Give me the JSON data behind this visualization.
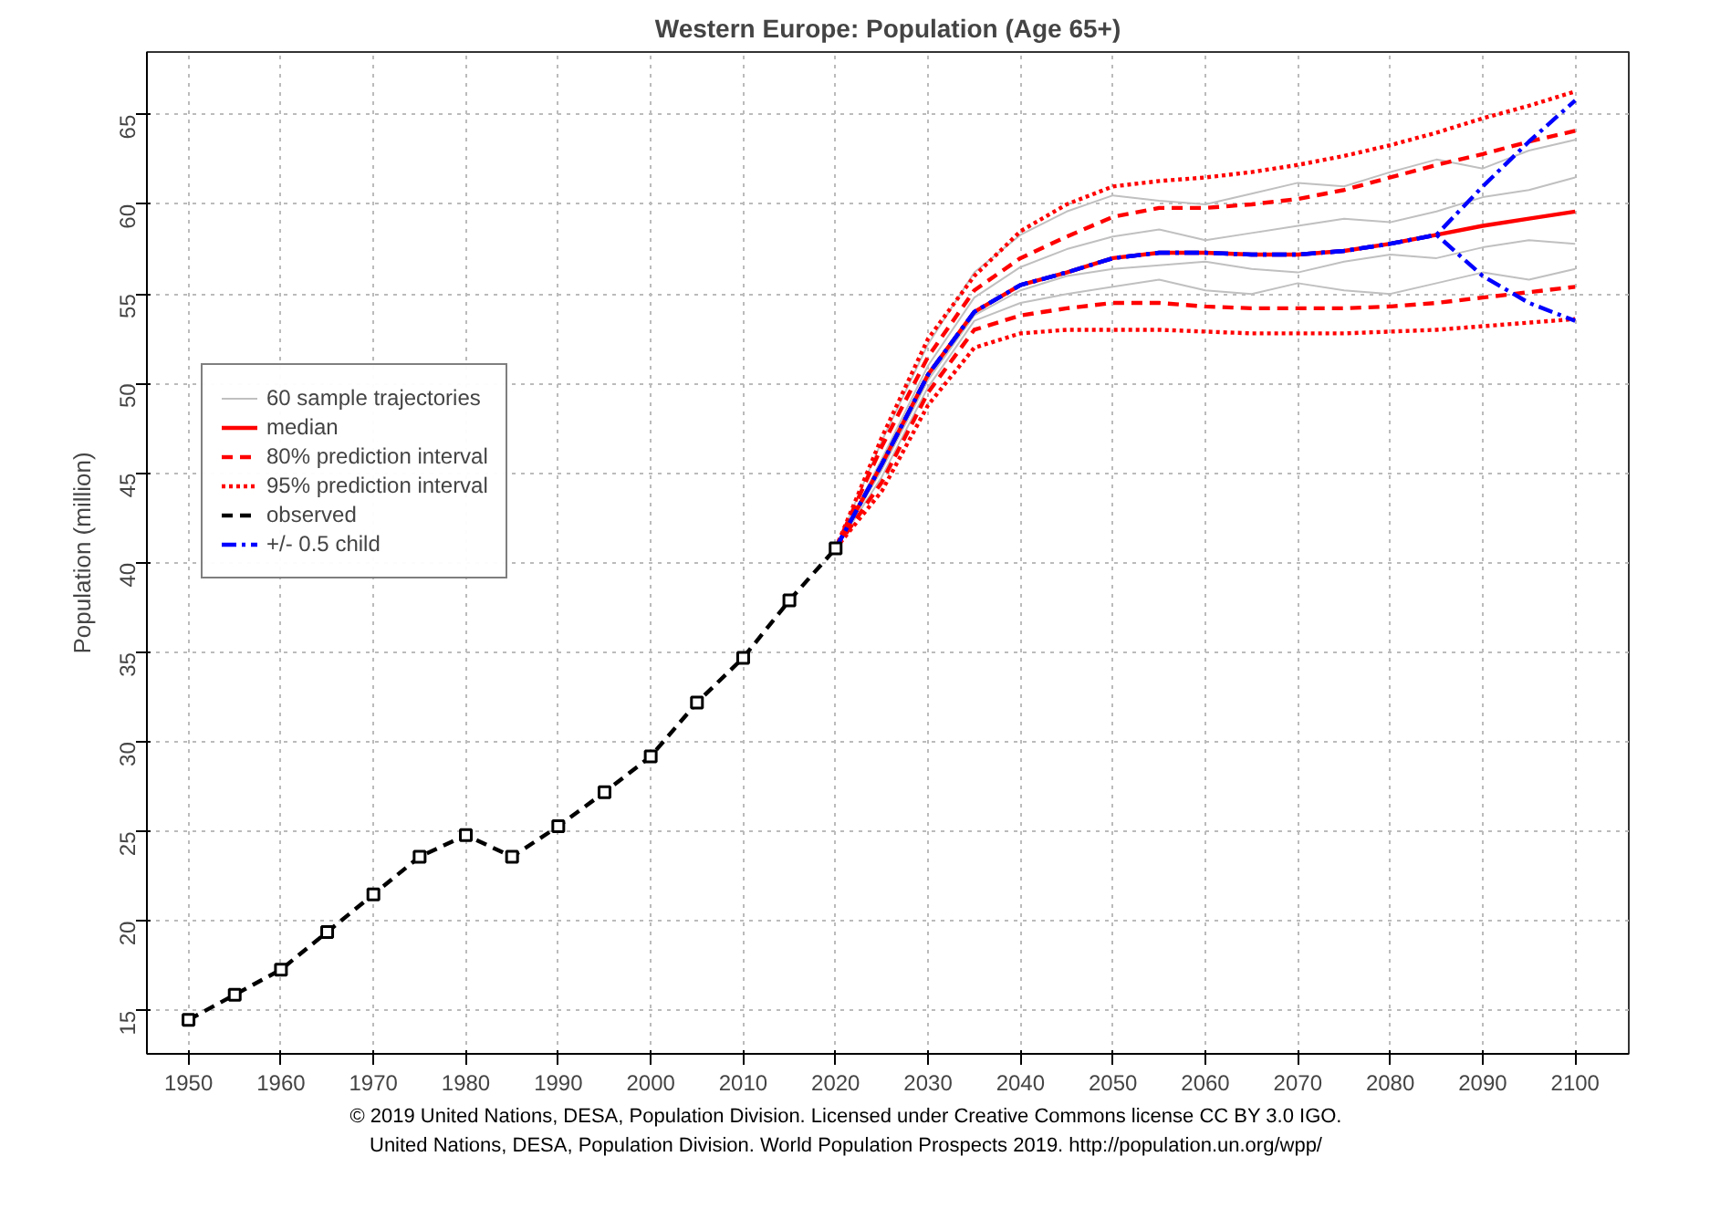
{
  "chart_data": {
    "type": "line",
    "title": "Western Europe: Population (Age 65+)",
    "ylabel": "Population (million)",
    "xlim": [
      1945.5,
      2105.8
    ],
    "ylim": [
      12.6,
      68.5
    ],
    "xticks": [
      1950,
      1960,
      1970,
      1980,
      1990,
      2000,
      2010,
      2020,
      2030,
      2040,
      2050,
      2060,
      2070,
      2080,
      2090,
      2100
    ],
    "yticks": [
      15,
      20,
      25,
      30,
      35,
      40,
      45,
      50,
      55,
      60,
      65
    ],
    "grid": true,
    "legend": "top left",
    "annotations": [
      "© 2019 United Nations, DESA, Population Division. Licensed under Creative Commons license CC BY 3.0 IGO.",
      "United Nations, DESA, Population Division. World Population Prospects 2019. http://population.un.org/wpp/"
    ],
    "series": [
      {
        "color": "#c0c0c0",
        "line_style": "solid",
        "marker": "none",
        "x": [
          2020,
          2025,
          2030,
          2035,
          2040,
          2045,
          2050,
          2055,
          2060,
          2065,
          2070,
          2075,
          2080,
          2085,
          2090,
          2095,
          2100
        ],
        "values": [
          40.8,
          46.8,
          52.2,
          56.2,
          58.3,
          59.6,
          60.5,
          60.2,
          60.0,
          60.6,
          61.2,
          61.0,
          61.8,
          62.5,
          62.0,
          63.0,
          63.6
        ]
      },
      {
        "color": "#c0c0c0",
        "line_style": "solid",
        "marker": "none",
        "x": [
          2020,
          2025,
          2030,
          2035,
          2040,
          2045,
          2050,
          2055,
          2060,
          2065,
          2070,
          2075,
          2080,
          2085,
          2090,
          2095,
          2100
        ],
        "values": [
          40.8,
          44.8,
          49.8,
          53.5,
          54.5,
          55.0,
          55.4,
          55.8,
          55.2,
          55.0,
          55.6,
          55.2,
          55.0,
          55.6,
          56.2,
          55.8,
          56.4
        ]
      },
      {
        "color": "#c0c0c0",
        "line_style": "solid",
        "marker": "none",
        "x": [
          2020,
          2025,
          2030,
          2035,
          2040,
          2045,
          2050,
          2055,
          2060,
          2065,
          2070,
          2075,
          2080,
          2085,
          2090,
          2095,
          2100
        ],
        "values": [
          40.8,
          45.8,
          51.0,
          54.8,
          56.5,
          57.5,
          58.2,
          58.6,
          58.0,
          58.4,
          58.8,
          59.2,
          59.0,
          59.6,
          60.4,
          60.8,
          61.5
        ]
      },
      {
        "name": "60 sample trajectories",
        "color": "#c0c0c0",
        "line_style": "solid",
        "marker": "none",
        "x": [
          2020,
          2025,
          2030,
          2035,
          2040,
          2045,
          2050,
          2055,
          2060,
          2065,
          2070,
          2075,
          2080,
          2085,
          2090,
          2095,
          2100
        ],
        "values": [
          40.8,
          45.2,
          50.2,
          53.8,
          55.2,
          56.0,
          56.4,
          56.6,
          56.8,
          56.4,
          56.2,
          56.8,
          57.2,
          57.0,
          57.6,
          58.0,
          57.8
        ]
      },
      {
        "name": "median",
        "color": "#ff0000",
        "line_style": "solid",
        "marker": "none",
        "x": [
          2020,
          2025,
          2030,
          2035,
          2040,
          2045,
          2050,
          2055,
          2060,
          2065,
          2070,
          2075,
          2080,
          2085,
          2090,
          2095,
          2100
        ],
        "values": [
          40.8,
          45.5,
          50.5,
          54.0,
          55.5,
          56.2,
          57.0,
          57.3,
          57.3,
          57.2,
          57.2,
          57.4,
          57.8,
          58.3,
          58.8,
          59.2,
          59.6
        ]
      },
      {
        "name": "80% prediction interval",
        "color": "#ff0000",
        "line_style": "dashed",
        "marker": "none",
        "x": [
          2020,
          2025,
          2030,
          2035,
          2040,
          2045,
          2050,
          2055,
          2060,
          2065,
          2070,
          2075,
          2080,
          2085,
          2090,
          2095,
          2100
        ],
        "values": [
          40.8,
          46.5,
          51.5,
          55.2,
          57.0,
          58.2,
          59.3,
          59.8,
          59.8,
          60.0,
          60.3,
          60.8,
          61.5,
          62.2,
          62.8,
          63.5,
          64.1
        ]
      },
      {
        "color": "#ff0000",
        "line_style": "dashed",
        "marker": "none",
        "x": [
          2020,
          2025,
          2030,
          2035,
          2040,
          2045,
          2050,
          2055,
          2060,
          2065,
          2070,
          2075,
          2080,
          2085,
          2090,
          2095,
          2100
        ],
        "values": [
          40.8,
          44.5,
          49.5,
          53.0,
          53.8,
          54.2,
          54.5,
          54.5,
          54.3,
          54.2,
          54.2,
          54.2,
          54.3,
          54.5,
          54.8,
          55.1,
          55.4
        ]
      },
      {
        "name": "95% prediction interval",
        "color": "#ff0000",
        "line_style": "dotted",
        "marker": "none",
        "x": [
          2020,
          2025,
          2030,
          2035,
          2040,
          2045,
          2050,
          2055,
          2060,
          2065,
          2070,
          2075,
          2080,
          2085,
          2090,
          2095,
          2100
        ],
        "values": [
          40.8,
          47.0,
          52.5,
          56.0,
          58.5,
          60.0,
          61.0,
          61.3,
          61.5,
          61.8,
          62.2,
          62.7,
          63.3,
          64.0,
          64.8,
          65.5,
          66.3
        ]
      },
      {
        "color": "#ff0000",
        "line_style": "dotted",
        "marker": "none",
        "x": [
          2020,
          2025,
          2030,
          2035,
          2040,
          2045,
          2050,
          2055,
          2060,
          2065,
          2070,
          2075,
          2080,
          2085,
          2090,
          2095,
          2100
        ],
        "values": [
          40.8,
          44.0,
          48.8,
          52.0,
          52.8,
          53.0,
          53.0,
          53.0,
          52.9,
          52.8,
          52.8,
          52.8,
          52.9,
          53.0,
          53.2,
          53.4,
          53.6
        ]
      },
      {
        "name": "observed",
        "color": "#000000",
        "line_style": "dashed",
        "marker": "square",
        "x": [
          1950,
          1955,
          1960,
          1965,
          1970,
          1975,
          1980,
          1985,
          1990,
          1995,
          2000,
          2005,
          2010,
          2015,
          2020
        ],
        "values": [
          14.5,
          15.9,
          17.3,
          19.4,
          21.5,
          23.6,
          24.8,
          23.6,
          25.3,
          27.2,
          29.2,
          32.2,
          34.7,
          37.9,
          40.8
        ]
      },
      {
        "name": "+/- 0.5 child",
        "color": "#0000ff",
        "line_style": "dashdot",
        "marker": "none",
        "x": [
          2020,
          2025,
          2030,
          2035,
          2040,
          2045,
          2050,
          2055,
          2060,
          2065,
          2070,
          2075,
          2080,
          2085,
          2090,
          2095,
          2100
        ],
        "values": [
          40.8,
          45.5,
          50.5,
          54.0,
          55.5,
          56.2,
          57.0,
          57.3,
          57.3,
          57.2,
          57.2,
          57.4,
          57.8,
          58.3,
          61.0,
          63.5,
          65.8
        ]
      },
      {
        "color": "#0000ff",
        "line_style": "dashdot",
        "marker": "none",
        "x": [
          2020,
          2025,
          2030,
          2035,
          2040,
          2045,
          2050,
          2055,
          2060,
          2065,
          2070,
          2075,
          2080,
          2085,
          2090,
          2095,
          2100
        ],
        "values": [
          40.8,
          45.5,
          50.5,
          54.0,
          55.5,
          56.2,
          57.0,
          57.3,
          57.3,
          57.2,
          57.2,
          57.4,
          57.8,
          58.3,
          56.0,
          54.5,
          53.5
        ]
      }
    ]
  }
}
